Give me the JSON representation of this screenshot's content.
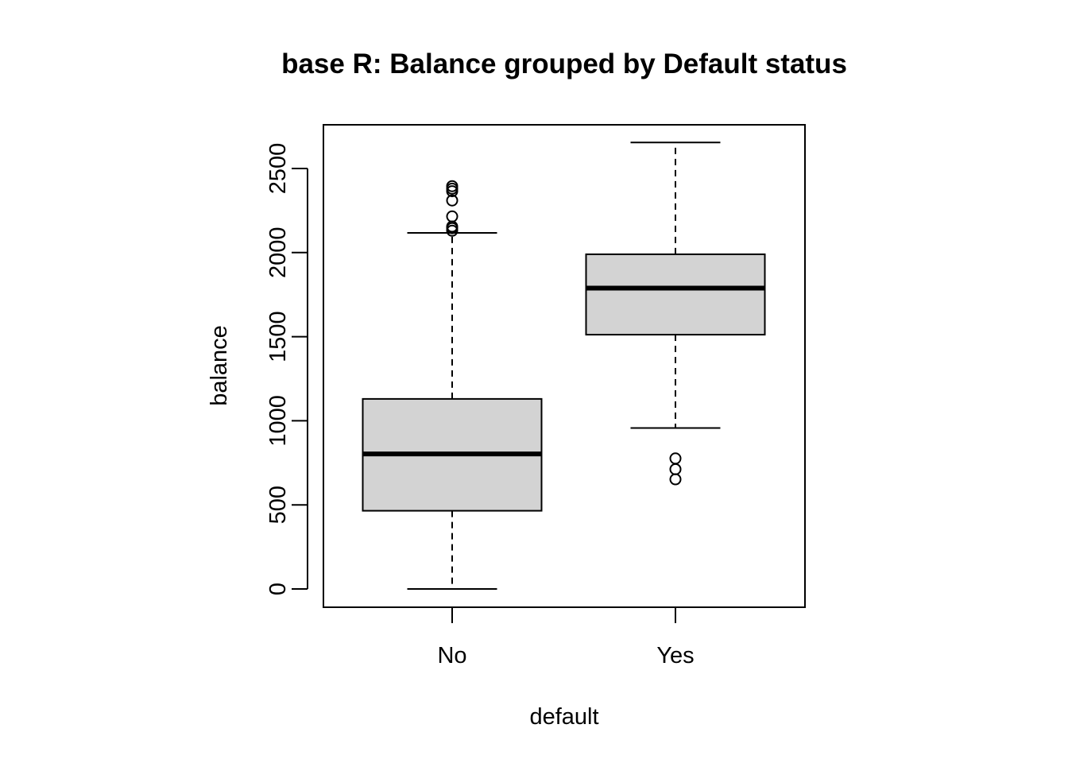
{
  "chart_data": {
    "type": "boxplot",
    "title": "base R: Balance grouped by Default status",
    "xlabel": "default",
    "ylabel": "balance",
    "categories": [
      "No",
      "Yes"
    ],
    "yticks": [
      0,
      500,
      1000,
      1500,
      2000,
      2500
    ],
    "ylim": [
      -100,
      2770
    ],
    "grid": false,
    "legend": "none",
    "box_fill": "#d3d3d3",
    "line_color": "#000000",
    "boxes": [
      {
        "category": "No",
        "whisker_low": 0,
        "q1": 465,
        "median": 803,
        "q3": 1130,
        "whisker_high": 2117,
        "outliers": [
          2130,
          2145,
          2155,
          2215,
          2310,
          2365,
          2380,
          2395
        ]
      },
      {
        "category": "Yes",
        "whisker_low": 957,
        "q1": 1512,
        "median": 1789,
        "q3": 1990,
        "whisker_high": 2655,
        "outliers": [
          652,
          712,
          776
        ]
      }
    ]
  }
}
